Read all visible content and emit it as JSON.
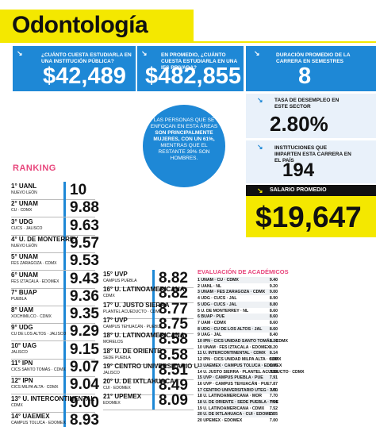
{
  "title": "Odontología",
  "stats": {
    "public_cost": {
      "label": "¿Cuánto cuesta estudiarla en una institución pública?",
      "value": "$42,489"
    },
    "private_cost": {
      "label": "En promedio, ¿cuánto cuesta estudiarla en una IES privada?",
      "value": "$482,855"
    },
    "duration": {
      "label": "Duración promedio de la carrera en semestres",
      "value": "8"
    },
    "unemployment": {
      "label": "Tasa de desempleo en este sector",
      "value": "2.80%"
    },
    "institutions": {
      "label": "Instituciones que imparten esta carrera en el país",
      "value": "194"
    },
    "salary": {
      "label": "Salario promedio",
      "value": "$19,647"
    }
  },
  "circle": {
    "pre": "Las personas que se enfocan en esta áreas",
    "bold": "son principalmente mujeres, con un 61%,",
    "post": "mientras que el restante 39% son hombres."
  },
  "ranking_title": "RANKING",
  "ranking_left": [
    {
      "name": "1° UANL",
      "sub": "Nuevo León",
      "score": "10"
    },
    {
      "name": "2° UNAM",
      "sub": "CU · CDMX",
      "score": "9.88"
    },
    {
      "name": "3° UDG",
      "sub": "CUCS · Jalisco",
      "score": "9.63"
    },
    {
      "name": "4° U. de Monterrey",
      "sub": "Nuevo León",
      "score": "9.57"
    },
    {
      "name": "5° UNAM",
      "sub": "FES Zaragoza · CDMX",
      "score": "9.53"
    },
    {
      "name": "6° UNAM",
      "sub": "FES Iztacala · Edomex",
      "score": "9.43"
    },
    {
      "name": "7° BUAP",
      "sub": "Puebla",
      "score": "9.36"
    },
    {
      "name": "8° UAM",
      "sub": "Xochimilco · CDMX",
      "score": "9.35"
    },
    {
      "name": "9° UDG",
      "sub": "CU de los Altos · Jalisco",
      "score": "9.29"
    },
    {
      "name": "10° UAG",
      "sub": "Jalisco",
      "score": "9.15"
    },
    {
      "name": "11° IPN",
      "sub": "CICS Santo Tomás · CDMX",
      "score": "9.07"
    },
    {
      "name": "12° IPN",
      "sub": "CICS Milpa Alta · CDMX",
      "score": "9.04"
    },
    {
      "name": "13° U. Intercontinental",
      "sub": "CDMX",
      "score": "9.00"
    },
    {
      "name": "14° UAEMex",
      "sub": "Campus Toluca · Edomex",
      "score": "8.93"
    }
  ],
  "ranking_mid": [
    {
      "name": "15° UVP",
      "sub": "Campus Puebla",
      "score": "8.82"
    },
    {
      "name": "16° U. Latinoamericana",
      "sub": "CDMX",
      "score": "8.82"
    },
    {
      "name": "17° U. Justo Sierra",
      "sub": "Plantel Acueducto · CDMX",
      "score": "8.77"
    },
    {
      "name": "17° UVP",
      "sub": "Campus Tehuacán · Puebla",
      "score": "8.75"
    },
    {
      "name": "18° U. Latinoamericana",
      "sub": "Morelos",
      "score": "8.58"
    },
    {
      "name": "18° U. de Oriente",
      "sub": "Sede Puebla",
      "score": "8.58"
    },
    {
      "name": "19° Centro Universitario UTEG",
      "sub": "Jalisco",
      "score": "8.51"
    },
    {
      "name": "20° U. de Ixtlahuaca",
      "sub": "CUI · Edomex",
      "score": "8.49"
    },
    {
      "name": "21° UPEMEX",
      "sub": "Edomex",
      "score": "8.09"
    }
  ],
  "eval_title": "Evaluación de académicos",
  "eval_rows": [
    {
      "name": "1 UNAM · CU · CDMX",
      "value": "9.40"
    },
    {
      "name": "2 UANL · NL",
      "value": "9.20"
    },
    {
      "name": "3 UNAM · FES Zaragoza · CDMX",
      "value": "9.00"
    },
    {
      "name": "4 UDG · CUCS · Jal",
      "value": "8.90"
    },
    {
      "name": "5 UDG · CUCS · Jal",
      "value": "8.80"
    },
    {
      "name": "5 U. de Monterrey · NL",
      "value": "8.60"
    },
    {
      "name": "6 BUAP · Pue",
      "value": "8.60"
    },
    {
      "name": "7 UAM · CDMX",
      "value": "8.60"
    },
    {
      "name": "8 UDG · CU de los Altos · Jal",
      "value": "8.60"
    },
    {
      "name": "9 UAG · Jal",
      "value": "8.40"
    },
    {
      "name": "10 IPN · CICS Unidad Santo Tomás · CDMX",
      "value": "8.20"
    },
    {
      "name": "10 UNAM · FES Iztacala · Edomex",
      "value": "8.20"
    },
    {
      "name": "11 U. Intercontinental · CDMX",
      "value": "8.14"
    },
    {
      "name": "12 IPN · CICS Unidad Milpa Alta · CDMX",
      "value": "8.00"
    },
    {
      "name": "13 UAEMex · Campus Toluca · Edomex",
      "value": "8.00"
    },
    {
      "name": "14 U. Justo Sierra · Plantel Acueducto · CDMX",
      "value": "7.98"
    },
    {
      "name": "15 UVP · Campus Puebla · Pue",
      "value": "7.91"
    },
    {
      "name": "16 UVP · Campus Tehuacán · Pue",
      "value": "7.87"
    },
    {
      "name": "17 Centro Universitario UTEG · Jal",
      "value": "7.70"
    },
    {
      "name": "18 U. Latinoamericana · Mor",
      "value": "7.70"
    },
    {
      "name": "18 U. de Oriente · Sede Puebla · Pue",
      "value": "7.64"
    },
    {
      "name": "19 U. Latinoamericana · CDMX",
      "value": "7.52"
    },
    {
      "name": "20 U. de Ixtlahuaca · CUI · Edomex",
      "value": "7.35"
    },
    {
      "name": "20 UPEMEX · Edomex",
      "value": "7.00"
    }
  ]
}
